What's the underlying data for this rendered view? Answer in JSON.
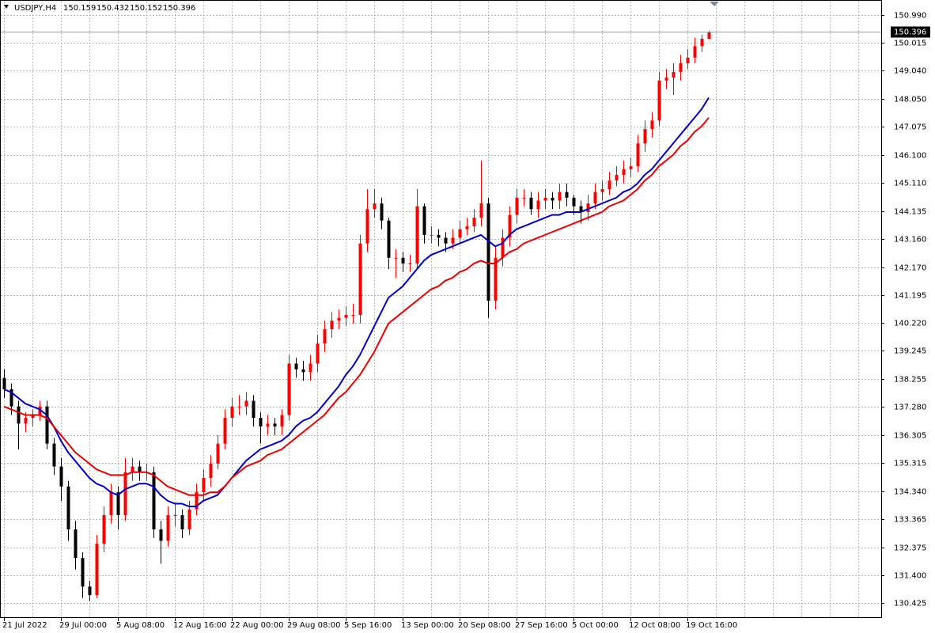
{
  "chart_data": {
    "type": "candlestick",
    "title": "USDJPY,H4",
    "categories": [
      "21 Jul 2022",
      null,
      null,
      null,
      null,
      null,
      null,
      null,
      "29 Jul 00:00",
      null,
      null,
      null,
      null,
      null,
      null,
      null,
      "5 Aug 08:00",
      null,
      null,
      null,
      null,
      null,
      null,
      null,
      "12 Aug 16:00",
      null,
      null,
      null,
      null,
      null,
      null,
      null,
      "22 Aug 00:00",
      null,
      null,
      null,
      null,
      null,
      null,
      null,
      "29 Aug 08:00",
      null,
      null,
      null,
      null,
      null,
      null,
      null,
      "5 Sep 16:00",
      null,
      null,
      null,
      null,
      null,
      null,
      null,
      "13 Sep 00:00",
      null,
      null,
      null,
      null,
      null,
      null,
      null,
      "20 Sep 08:00",
      null,
      null,
      null,
      null,
      null,
      null,
      null,
      "27 Sep 16:00",
      null,
      null,
      null,
      null,
      null,
      null,
      null,
      "5 Oct 00:00",
      null,
      null,
      null,
      null,
      null,
      null,
      null,
      "12 Oct 08:00",
      null,
      null,
      null,
      null,
      null,
      null,
      null,
      "19 Oct 16:00",
      null,
      null,
      null
    ],
    "open": [
      138.3,
      137.9,
      137.3,
      136.7,
      136.9,
      137.0,
      137.3,
      136.0,
      135.2,
      134.5,
      133.0,
      132.0,
      131.0,
      130.7,
      132.5,
      133.5,
      134.3,
      133.5,
      135.0,
      135.2,
      135.0,
      135.0,
      133.0,
      132.6,
      133.5,
      133.5,
      133.0,
      133.7,
      134.3,
      134.8,
      135.3,
      136.0,
      136.9,
      137.3,
      137.3,
      137.5,
      136.9,
      136.6,
      136.7,
      136.6,
      137.0,
      138.8,
      138.6,
      138.5,
      138.8,
      139.5,
      140.0,
      140.3,
      140.4,
      140.5,
      140.5,
      143.0,
      144.2,
      144.4,
      143.8,
      142.5,
      142.5,
      142.3,
      142.3,
      144.3,
      143.3,
      143.3,
      143.2,
      143.0,
      143.2,
      143.5,
      143.6,
      143.9,
      144.4,
      141.0,
      142.5,
      143.2,
      144.0,
      144.6,
      144.6,
      144.2,
      144.5,
      144.6,
      144.5,
      144.8,
      144.6,
      144.3,
      144.1,
      144.4,
      144.8,
      144.9,
      145.2,
      145.4,
      145.6,
      145.7,
      146.5,
      147.0,
      147.3,
      148.7,
      148.8,
      149.0,
      149.3,
      149.5,
      149.9,
      150.159
    ],
    "high": [
      138.6,
      138.1,
      137.5,
      137.1,
      137.2,
      137.5,
      137.5,
      136.2,
      135.5,
      134.7,
      133.3,
      132.2,
      131.2,
      132.8,
      133.8,
      134.6,
      134.5,
      135.5,
      135.5,
      135.4,
      135.3,
      135.2,
      133.3,
      133.8,
      133.9,
      133.7,
      134.0,
      134.6,
      135.1,
      135.6,
      136.3,
      137.2,
      137.6,
      137.7,
      137.8,
      137.7,
      137.1,
      137.0,
      136.9,
      137.2,
      139.1,
      139.0,
      138.9,
      139.1,
      139.8,
      140.3,
      140.6,
      140.7,
      140.8,
      140.9,
      143.3,
      144.9,
      144.9,
      144.6,
      143.9,
      142.8,
      142.7,
      142.6,
      144.9,
      144.4,
      143.6,
      143.5,
      143.4,
      143.5,
      143.8,
      143.9,
      144.2,
      145.9,
      144.6,
      142.9,
      143.5,
      144.3,
      144.9,
      144.9,
      144.8,
      144.8,
      144.9,
      144.8,
      145.1,
      145.1,
      144.7,
      144.5,
      144.7,
      145.1,
      145.2,
      145.5,
      145.7,
      145.9,
      146.0,
      146.8,
      147.3,
      147.6,
      149.0,
      149.1,
      149.3,
      149.6,
      149.8,
      150.2,
      150.3,
      150.432
    ],
    "low": [
      137.6,
      137.0,
      135.8,
      136.4,
      136.6,
      136.8,
      135.8,
      134.9,
      134.0,
      132.6,
      131.6,
      130.6,
      130.5,
      130.6,
      132.2,
      133.2,
      133.0,
      133.3,
      134.7,
      134.7,
      134.7,
      132.7,
      131.8,
      132.4,
      133.1,
      132.7,
      132.8,
      133.5,
      134.0,
      134.5,
      135.1,
      135.8,
      136.6,
      137.0,
      137.0,
      136.6,
      136.0,
      136.3,
      136.3,
      136.3,
      136.8,
      138.3,
      138.2,
      138.2,
      138.5,
      139.2,
      139.7,
      140.0,
      140.1,
      140.2,
      140.2,
      142.7,
      143.9,
      143.5,
      142.1,
      141.8,
      142.0,
      142.0,
      142.1,
      143.0,
      143.0,
      142.9,
      142.7,
      142.8,
      143.0,
      143.3,
      143.4,
      143.6,
      140.4,
      140.7,
      142.2,
      142.9,
      143.7,
      144.3,
      144.0,
      143.9,
      144.2,
      144.2,
      144.2,
      144.3,
      144.0,
      143.7,
      143.8,
      144.2,
      144.5,
      144.7,
      145.0,
      145.1,
      145.3,
      145.5,
      146.2,
      146.7,
      147.1,
      148.4,
      148.2,
      148.7,
      149.1,
      149.3,
      149.7,
      150.152
    ],
    "close": [
      137.9,
      137.3,
      136.7,
      136.9,
      137.0,
      137.3,
      136.0,
      135.2,
      134.5,
      133.0,
      132.0,
      131.0,
      130.7,
      132.5,
      133.5,
      134.3,
      133.5,
      135.0,
      135.2,
      135.0,
      135.0,
      133.0,
      132.6,
      133.5,
      133.5,
      133.0,
      133.7,
      134.3,
      134.8,
      135.3,
      136.0,
      136.9,
      137.3,
      137.3,
      137.5,
      136.9,
      136.6,
      136.7,
      136.6,
      137.0,
      138.8,
      138.6,
      138.5,
      138.8,
      139.5,
      140.0,
      140.3,
      140.4,
      140.5,
      140.5,
      143.0,
      144.2,
      144.4,
      143.8,
      142.5,
      142.5,
      142.3,
      142.3,
      144.3,
      143.3,
      143.3,
      143.2,
      143.0,
      143.2,
      143.5,
      143.6,
      143.9,
      144.4,
      141.0,
      142.5,
      143.2,
      144.0,
      144.6,
      144.6,
      144.2,
      144.5,
      144.6,
      144.5,
      144.8,
      144.6,
      144.3,
      144.1,
      144.4,
      144.8,
      144.9,
      145.2,
      145.4,
      145.6,
      145.7,
      146.5,
      147.0,
      147.3,
      148.7,
      148.8,
      149.0,
      149.3,
      149.5,
      149.9,
      150.159,
      150.396
    ],
    "up_color": "#ff0000",
    "down_color": "#000000",
    "lines": [
      {
        "color": "#0000cc",
        "values": [
          137.9,
          137.8,
          137.6,
          137.4,
          137.3,
          137.2,
          137.0,
          136.6,
          136.1,
          135.7,
          135.4,
          135.1,
          134.8,
          134.6,
          134.5,
          134.3,
          134.2,
          134.4,
          134.5,
          134.6,
          134.6,
          134.5,
          134.2,
          134.0,
          133.9,
          133.9,
          133.8,
          133.8,
          134.0,
          134.1,
          134.2,
          134.5,
          134.8,
          135.1,
          135.4,
          135.6,
          135.8,
          135.9,
          136.0,
          136.1,
          136.3,
          136.6,
          136.8,
          136.9,
          137.1,
          137.4,
          137.7,
          138.0,
          138.4,
          138.7,
          139.1,
          139.6,
          140.1,
          140.6,
          141.1,
          141.3,
          141.5,
          141.8,
          142.1,
          142.4,
          142.6,
          142.7,
          142.8,
          142.9,
          143.0,
          143.1,
          143.2,
          143.3,
          143.1,
          142.9,
          143.0,
          143.3,
          143.5,
          143.6,
          143.7,
          143.8,
          143.9,
          144.0,
          144.0,
          144.1,
          144.1,
          144.1,
          144.2,
          144.3,
          144.4,
          144.5,
          144.6,
          144.8,
          144.9,
          145.1,
          145.4,
          145.6,
          145.9,
          146.2,
          146.5,
          146.8,
          147.1,
          147.4,
          147.7,
          148.1
        ]
      },
      {
        "color": "#ee0000",
        "values": [
          137.3,
          137.2,
          137.1,
          137.0,
          137.0,
          137.0,
          136.9,
          136.6,
          136.3,
          136.0,
          135.7,
          135.5,
          135.3,
          135.1,
          135.0,
          134.9,
          134.9,
          134.9,
          135.0,
          135.0,
          135.0,
          134.9,
          134.7,
          134.5,
          134.4,
          134.3,
          134.2,
          134.2,
          134.2,
          134.3,
          134.3,
          134.5,
          134.8,
          135.0,
          135.2,
          135.3,
          135.4,
          135.6,
          135.7,
          135.8,
          136.0,
          136.2,
          136.4,
          136.6,
          136.8,
          137.0,
          137.3,
          137.6,
          137.8,
          138.1,
          138.4,
          138.8,
          139.2,
          139.7,
          140.2,
          140.4,
          140.6,
          140.8,
          141.0,
          141.2,
          141.4,
          141.5,
          141.7,
          141.8,
          142.0,
          142.1,
          142.3,
          142.4,
          142.3,
          142.3,
          142.5,
          142.7,
          142.8,
          143.0,
          143.1,
          143.2,
          143.3,
          143.4,
          143.5,
          143.6,
          143.7,
          143.8,
          143.9,
          144.0,
          144.1,
          144.3,
          144.4,
          144.5,
          144.7,
          144.9,
          145.2,
          145.4,
          145.7,
          145.9,
          146.1,
          146.4,
          146.6,
          146.9,
          147.1,
          147.4
        ]
      }
    ],
    "ylim": [
      129.93,
      151.46
    ],
    "yticks": [
      {
        "value": 150.99,
        "label": "150.990"
      },
      {
        "value": 150.015,
        "label": "150.015"
      },
      {
        "value": 149.04,
        "label": "149.040"
      },
      {
        "value": 148.05,
        "label": "148.050"
      },
      {
        "value": 147.075,
        "label": "147.075"
      },
      {
        "value": 146.1,
        "label": "146.100"
      },
      {
        "value": 145.11,
        "label": "145.110"
      },
      {
        "value": 144.135,
        "label": "144.135"
      },
      {
        "value": 143.16,
        "label": "143.160"
      },
      {
        "value": 142.17,
        "label": "142.170"
      },
      {
        "value": 141.195,
        "label": "141.195"
      },
      {
        "value": 140.22,
        "label": "140.220"
      },
      {
        "value": 139.245,
        "label": "139.245"
      },
      {
        "value": 138.255,
        "label": "138.255"
      },
      {
        "value": 137.28,
        "label": "137.280"
      },
      {
        "value": 136.305,
        "label": "136.305"
      },
      {
        "value": 135.315,
        "label": "135.315"
      },
      {
        "value": 134.34,
        "label": "134.340"
      },
      {
        "value": 133.365,
        "label": "133.365"
      },
      {
        "value": 132.375,
        "label": "132.375"
      },
      {
        "value": 131.4,
        "label": "131.400"
      },
      {
        "value": 130.425,
        "label": "130.425"
      }
    ],
    "grid": true
  }
}
